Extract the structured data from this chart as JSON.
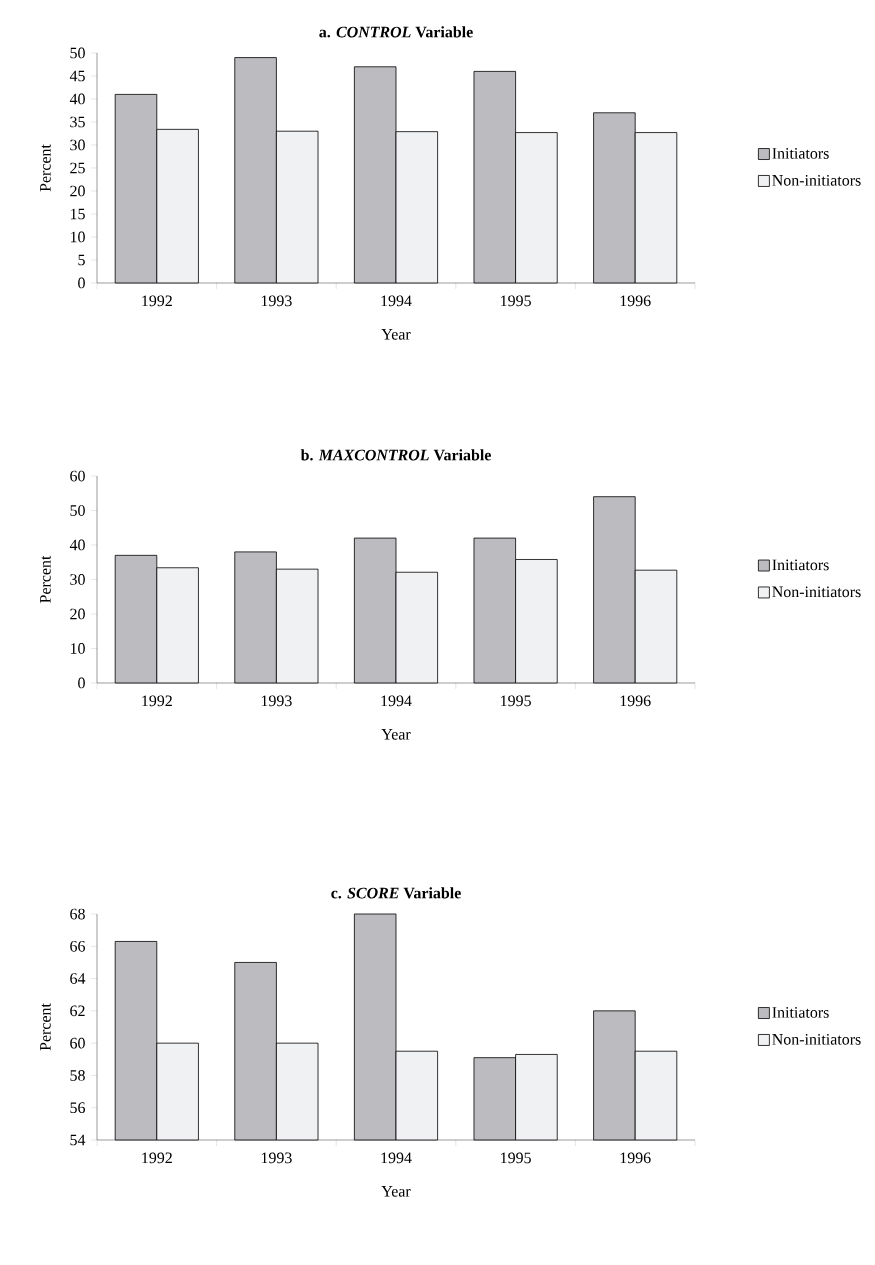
{
  "chart_data": [
    {
      "type": "bar",
      "title": "a. *CONTROL* Variable",
      "xlabel": "Year",
      "ylabel": "Percent",
      "categories": [
        "1992",
        "1993",
        "1994",
        "1995",
        "1996"
      ],
      "series": [
        {
          "name": "Initiators",
          "color": "#bcbcc0",
          "values": [
            41,
            49,
            47,
            46,
            37
          ]
        },
        {
          "name": "Non-initiators",
          "color": "#f0f1f3",
          "values": [
            33.4,
            33.0,
            32.9,
            32.7,
            32.7
          ]
        }
      ],
      "ylim": [
        0,
        50
      ],
      "yticks": [
        0,
        5,
        10,
        15,
        20,
        25,
        30,
        35,
        40,
        45,
        50
      ],
      "legend": "right"
    },
    {
      "type": "bar",
      "title": "b. *MAXCONTROL* Variable",
      "xlabel": "Year",
      "ylabel": "Percent",
      "categories": [
        "1992",
        "1993",
        "1994",
        "1995",
        "1996"
      ],
      "series": [
        {
          "name": "Initiators",
          "color": "#bcbcc0",
          "values": [
            37,
            38,
            42,
            42,
            54
          ]
        },
        {
          "name": "Non-initiators",
          "color": "#f0f1f3",
          "values": [
            33.4,
            33.0,
            32.1,
            35.8,
            32.7
          ]
        }
      ],
      "ylim": [
        0,
        60
      ],
      "yticks": [
        0,
        10,
        20,
        30,
        40,
        50,
        60
      ],
      "legend": "right"
    },
    {
      "type": "bar",
      "title": "c. *SCORE* Variable",
      "xlabel": "Year",
      "ylabel": "Percent",
      "categories": [
        "1992",
        "1993",
        "1994",
        "1995",
        "1996"
      ],
      "series": [
        {
          "name": "Initiators",
          "color": "#bcbcc0",
          "values": [
            66.3,
            65.0,
            68.0,
            59.1,
            62.0
          ]
        },
        {
          "name": "Non-initiators",
          "color": "#f0f1f3",
          "values": [
            60.0,
            60.0,
            59.5,
            59.3,
            59.5
          ]
        }
      ],
      "ylim": [
        54,
        68
      ],
      "yticks": [
        54,
        56,
        58,
        60,
        62,
        64,
        66,
        68
      ],
      "legend": "right"
    }
  ]
}
